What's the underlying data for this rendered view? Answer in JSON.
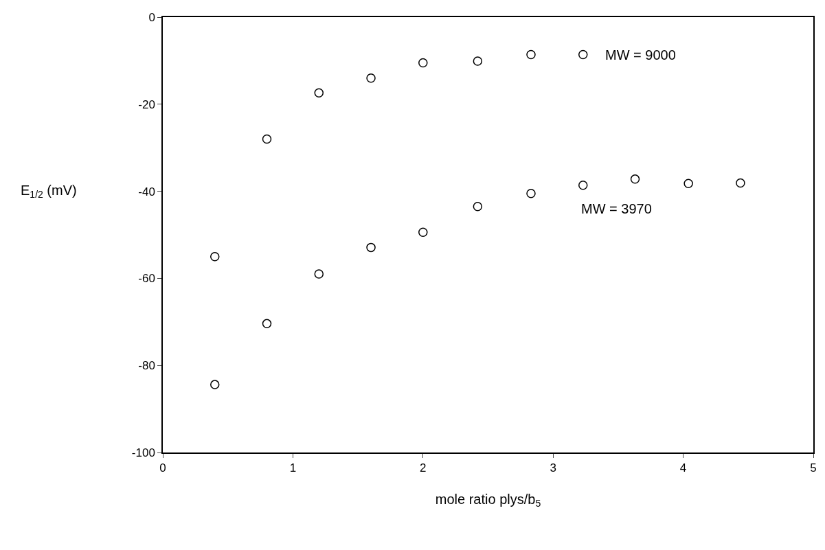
{
  "chart_data": {
    "type": "scatter",
    "xlabel": "mole ratio plys/b$_{5}$",
    "ylabel": "E$_{1/2}$ (mV)",
    "xlim": [
      0,
      5
    ],
    "xticks": [
      0,
      1,
      2,
      3,
      4,
      5
    ],
    "ylim": [
      -100,
      0
    ],
    "yticks": [
      -100,
      -80,
      -60,
      -40,
      -20,
      0
    ],
    "marker": "circle",
    "legend": false,
    "series": [
      {
        "name": "MW = 9000",
        "color": "#000000",
        "x": [
          0.4,
          0.8,
          1.2,
          1.6,
          2.0,
          2.42,
          2.83,
          3.23
        ],
        "values": [
          -55.0,
          -28.0,
          -17.4,
          -14.0,
          -10.5,
          -10.1,
          -8.6,
          -8.6
        ]
      },
      {
        "name": "MW = 3970",
        "color": "#000000",
        "x": [
          0.4,
          0.8,
          1.2,
          1.6,
          2.0,
          2.42,
          2.83,
          3.23,
          3.63,
          4.04,
          4.44
        ],
        "values": [
          -84.4,
          -70.4,
          -59.0,
          -52.9,
          -49.4,
          -43.5,
          -40.5,
          -38.6,
          -37.2,
          -38.2,
          -38.1
        ]
      }
    ]
  }
}
